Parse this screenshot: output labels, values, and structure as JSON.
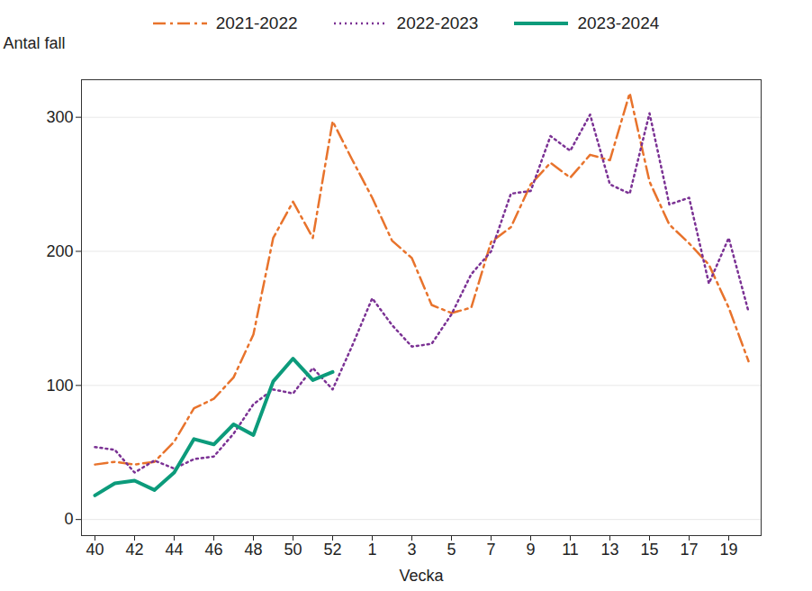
{
  "chart_data": {
    "type": "line",
    "x_label": "Vecka",
    "y_label": "Antal fall",
    "categories": [
      40,
      null,
      42,
      null,
      44,
      null,
      46,
      null,
      48,
      null,
      50,
      null,
      52,
      null,
      1,
      null,
      3,
      null,
      5,
      null,
      7,
      null,
      9,
      null,
      11,
      null,
      13,
      null,
      15,
      null,
      17,
      null,
      19,
      null
    ],
    "series": [
      {
        "name": "2021-2022",
        "color": "#e8732c",
        "line_style": "dashdot",
        "values": [
          41,
          43,
          41,
          43,
          58,
          83,
          90,
          106,
          138,
          210,
          237,
          210,
          297,
          268,
          240,
          208,
          195,
          160,
          154,
          158,
          207,
          218,
          250,
          266,
          255,
          272,
          268,
          318,
          252,
          220,
          206,
          190,
          158,
          118
        ]
      },
      {
        "name": "2022-2023",
        "color": "#7b3294",
        "line_style": "dotted",
        "values": [
          54,
          52,
          35,
          44,
          38,
          45,
          47,
          64,
          86,
          97,
          94,
          113,
          97,
          130,
          165,
          145,
          129,
          131,
          153,
          183,
          200,
          243,
          245,
          286,
          275,
          302,
          250,
          243,
          303,
          235,
          240,
          176,
          210,
          155
        ]
      },
      {
        "name": "2023-2024",
        "color": "#0c9b7b",
        "line_style": "solid",
        "values": [
          18,
          27,
          29,
          22,
          35,
          60,
          56,
          71,
          63,
          103,
          120,
          104,
          110,
          null,
          null,
          null,
          null,
          null,
          null,
          null,
          null,
          null,
          null,
          null,
          null,
          null,
          null,
          null,
          null,
          null,
          null,
          null,
          null,
          null
        ]
      }
    ],
    "ylim": [
      -12,
      328
    ],
    "yticks": [
      0,
      100,
      200,
      300
    ],
    "grid": true,
    "legend": "top"
  }
}
